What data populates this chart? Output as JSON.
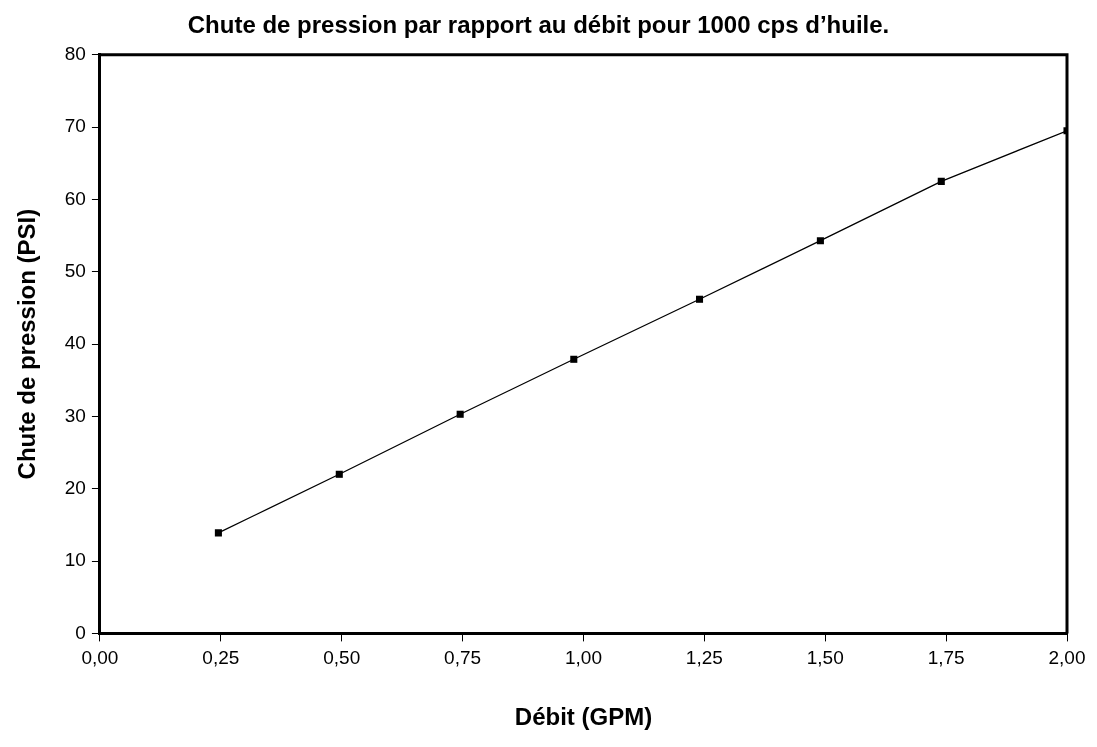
{
  "chart_data": {
    "type": "line",
    "title": "Chute de pression par rapport au débit pour 1000 cps d’huile.",
    "xlabel": "Débit (GPM)",
    "ylabel": "Chute de pression (PSI)",
    "x": [
      0.245,
      0.495,
      0.745,
      0.98,
      1.24,
      1.49,
      1.74,
      2.0
    ],
    "series": [
      {
        "color": "#000000",
        "values": [
          13.9,
          22.0,
          30.3,
          37.9,
          46.2,
          54.3,
          62.5,
          69.5
        ]
      }
    ],
    "xlim": [
      0,
      2
    ],
    "xticks": [
      {
        "value": 0,
        "label": "0,00"
      },
      {
        "value": 0.25,
        "label": "0,25"
      },
      {
        "value": 0.5,
        "label": "0,50"
      },
      {
        "value": 0.75,
        "label": "0,75"
      },
      {
        "value": 1,
        "label": "1,00"
      },
      {
        "value": 1.25,
        "label": "1,25"
      },
      {
        "value": 1.5,
        "label": "1,50"
      },
      {
        "value": 1.75,
        "label": "1,75"
      },
      {
        "value": 2,
        "label": "2,00"
      }
    ],
    "ylim": [
      0,
      80
    ],
    "yticks": [
      0,
      10,
      20,
      30,
      40,
      50,
      60,
      70,
      80
    ],
    "grid": false,
    "legend": false,
    "marker": "square",
    "line_style": "solid"
  }
}
